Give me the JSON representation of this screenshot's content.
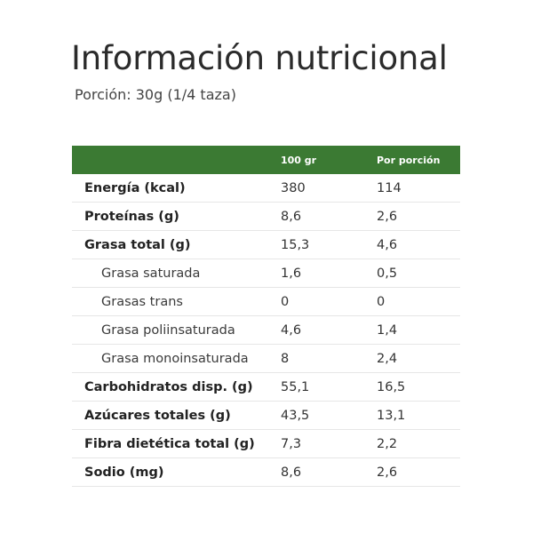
{
  "title": "Información nutricional",
  "subtitle": "Porción: 30g (1/4 taza)",
  "table": {
    "headers": [
      "",
      "100 gr",
      "Por porción"
    ],
    "header_color": "#3b7a33",
    "rows": [
      {
        "label": "Energía (kcal)",
        "per100": "380",
        "perPortion": "114",
        "level": "main"
      },
      {
        "label": "Proteínas (g)",
        "per100": "8,6",
        "perPortion": "2,6",
        "level": "main"
      },
      {
        "label": "Grasa total (g)",
        "per100": "15,3",
        "perPortion": "4,6",
        "level": "main"
      },
      {
        "label": "Grasa saturada",
        "per100": "1,6",
        "perPortion": "0,5",
        "level": "sub"
      },
      {
        "label": "Grasas trans",
        "per100": "0",
        "perPortion": "0",
        "level": "sub"
      },
      {
        "label": "Grasa poliinsaturada",
        "per100": "4,6",
        "perPortion": "1,4",
        "level": "sub"
      },
      {
        "label": "Grasa monoinsaturada",
        "per100": "8",
        "perPortion": "2,4",
        "level": "sub"
      },
      {
        "label": "Carbohidratos disp. (g)",
        "per100": "55,1",
        "perPortion": "16,5",
        "level": "main"
      },
      {
        "label": "Azúcares totales (g)",
        "per100": "43,5",
        "perPortion": "13,1",
        "level": "main"
      },
      {
        "label": "Fibra dietética total (g)",
        "per100": "7,3",
        "perPortion": "2,2",
        "level": "main"
      },
      {
        "label": "Sodio (mg)",
        "per100": "8,6",
        "perPortion": "2,6",
        "level": "main"
      }
    ]
  }
}
